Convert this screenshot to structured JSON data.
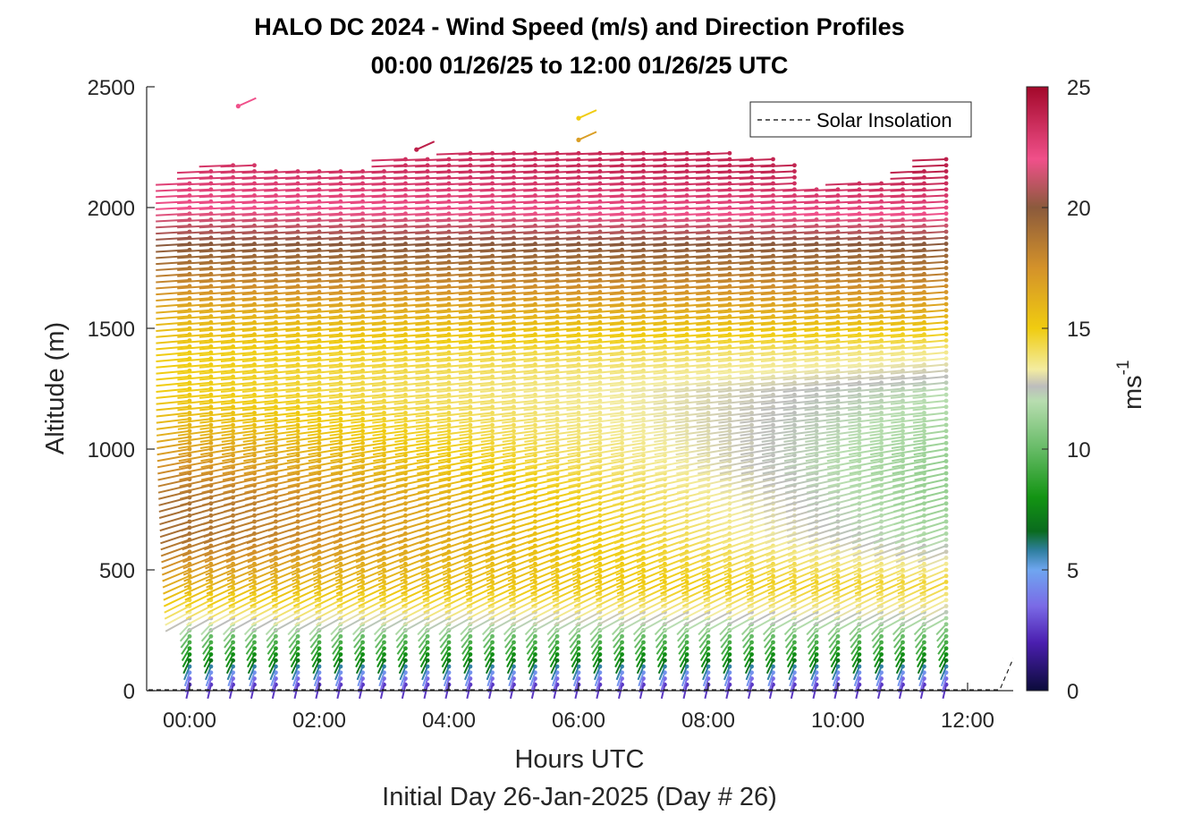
{
  "chart_data": {
    "type": "wind-barb-profile",
    "title_line1": "HALO DC 2024 - Wind Speed (m/s) and Direction Profiles",
    "title_line2": "00:00 01/26/25 to 12:00 01/26/25  UTC",
    "xlabel": "Hours UTC",
    "xlabel2": "Initial Day 26-Jan-2025 (Day # 26)",
    "ylabel": "Altitude (m)",
    "colorbar_label": "ms",
    "colorbar_label_exp": "-1",
    "xlim": [
      -0.6,
      12.5
    ],
    "ylim": [
      0,
      2500
    ],
    "x_ticks": [
      0,
      2,
      4,
      6,
      8,
      10,
      12
    ],
    "x_tick_labels": [
      "00:00",
      "02:00",
      "04:00",
      "06:00",
      "08:00",
      "10:00",
      "12:00"
    ],
    "y_ticks": [
      0,
      500,
      1000,
      1500,
      2000,
      2500
    ],
    "y_tick_labels": [
      "0",
      "500",
      "1000",
      "1500",
      "2000",
      "2500"
    ],
    "colorbar_range": [
      0,
      25
    ],
    "colorbar_ticks": [
      0,
      5,
      10,
      15,
      20,
      25
    ],
    "colorbar_tick_labels": [
      "0",
      "5",
      "10",
      "15",
      "20",
      "25"
    ],
    "legend": {
      "entries": [
        "Solar Insolation"
      ],
      "placement": "top-right",
      "style": "dashed-black"
    },
    "colormap_stops": [
      {
        "v": 0,
        "c": "#0b0b3a"
      },
      {
        "v": 2,
        "c": "#4b1fb0"
      },
      {
        "v": 3.5,
        "c": "#7a6ae6"
      },
      {
        "v": 5,
        "c": "#6fa6f0"
      },
      {
        "v": 5.8,
        "c": "#2f7fa0"
      },
      {
        "v": 6.6,
        "c": "#0a6b1e"
      },
      {
        "v": 8,
        "c": "#139413"
      },
      {
        "v": 10,
        "c": "#66bb66"
      },
      {
        "v": 12,
        "c": "#b8ddb0"
      },
      {
        "v": 12.6,
        "c": "#bdbdbd"
      },
      {
        "v": 13.3,
        "c": "#f3eca0"
      },
      {
        "v": 15,
        "c": "#f0cc10"
      },
      {
        "v": 17.5,
        "c": "#d4922a"
      },
      {
        "v": 20,
        "c": "#8b5a3c"
      },
      {
        "v": 22,
        "c": "#f0508a"
      },
      {
        "v": 25,
        "c": "#a3082a"
      }
    ],
    "profile_times_hours": [
      0.0,
      0.33,
      0.67,
      1.0,
      1.33,
      1.67,
      2.0,
      2.33,
      2.67,
      3.0,
      3.33,
      3.67,
      4.0,
      4.33,
      4.67,
      5.0,
      5.33,
      5.67,
      6.0,
      6.33,
      6.67,
      7.0,
      7.33,
      7.67,
      8.0,
      8.33,
      8.67,
      9.0,
      9.33,
      9.67,
      10.0,
      10.33,
      10.67,
      11.0,
      11.33,
      11.67
    ],
    "profile_top_altitude_m": [
      2100,
      2150,
      2190,
      2180,
      2170,
      2160,
      2150,
      2150,
      2150,
      2150,
      2200,
      2210,
      2220,
      2230,
      2230,
      2230,
      2230,
      2230,
      2230,
      2230,
      2230,
      2230,
      2230,
      2230,
      2230,
      2230,
      2220,
      2210,
      2180,
      2080,
      2080,
      2100,
      2100,
      2110,
      2160,
      2210
    ],
    "isolated_barbs": [
      {
        "time_hours": 0.75,
        "altitude_m": 2420,
        "speed_ms": 22
      },
      {
        "time_hours": 6.0,
        "altitude_m": 2370,
        "speed_ms": 15
      },
      {
        "time_hours": 6.0,
        "altitude_m": 2280,
        "speed_ms": 17
      },
      {
        "time_hours": 3.5,
        "altitude_m": 2240,
        "speed_ms": 24
      }
    ],
    "speed_levels": {
      "altitude_m": [
        25,
        75,
        125,
        175,
        225,
        275,
        350,
        450,
        550,
        650,
        800,
        950,
        1100,
        1250,
        1400,
        1550,
        1700,
        1850,
        2000,
        2150
      ],
      "speed_ms_early": [
        2.5,
        4.5,
        7,
        8.5,
        10,
        12,
        14,
        16,
        17.5,
        19,
        19,
        17.5,
        16,
        15,
        15,
        16,
        18,
        20,
        22,
        23
      ],
      "speed_ms_late": [
        2.5,
        4.5,
        7,
        8.5,
        10,
        11,
        13,
        14.5,
        13,
        11.5,
        11,
        11,
        11.5,
        12,
        13.5,
        16,
        18,
        20,
        22.5,
        24
      ]
    }
  }
}
